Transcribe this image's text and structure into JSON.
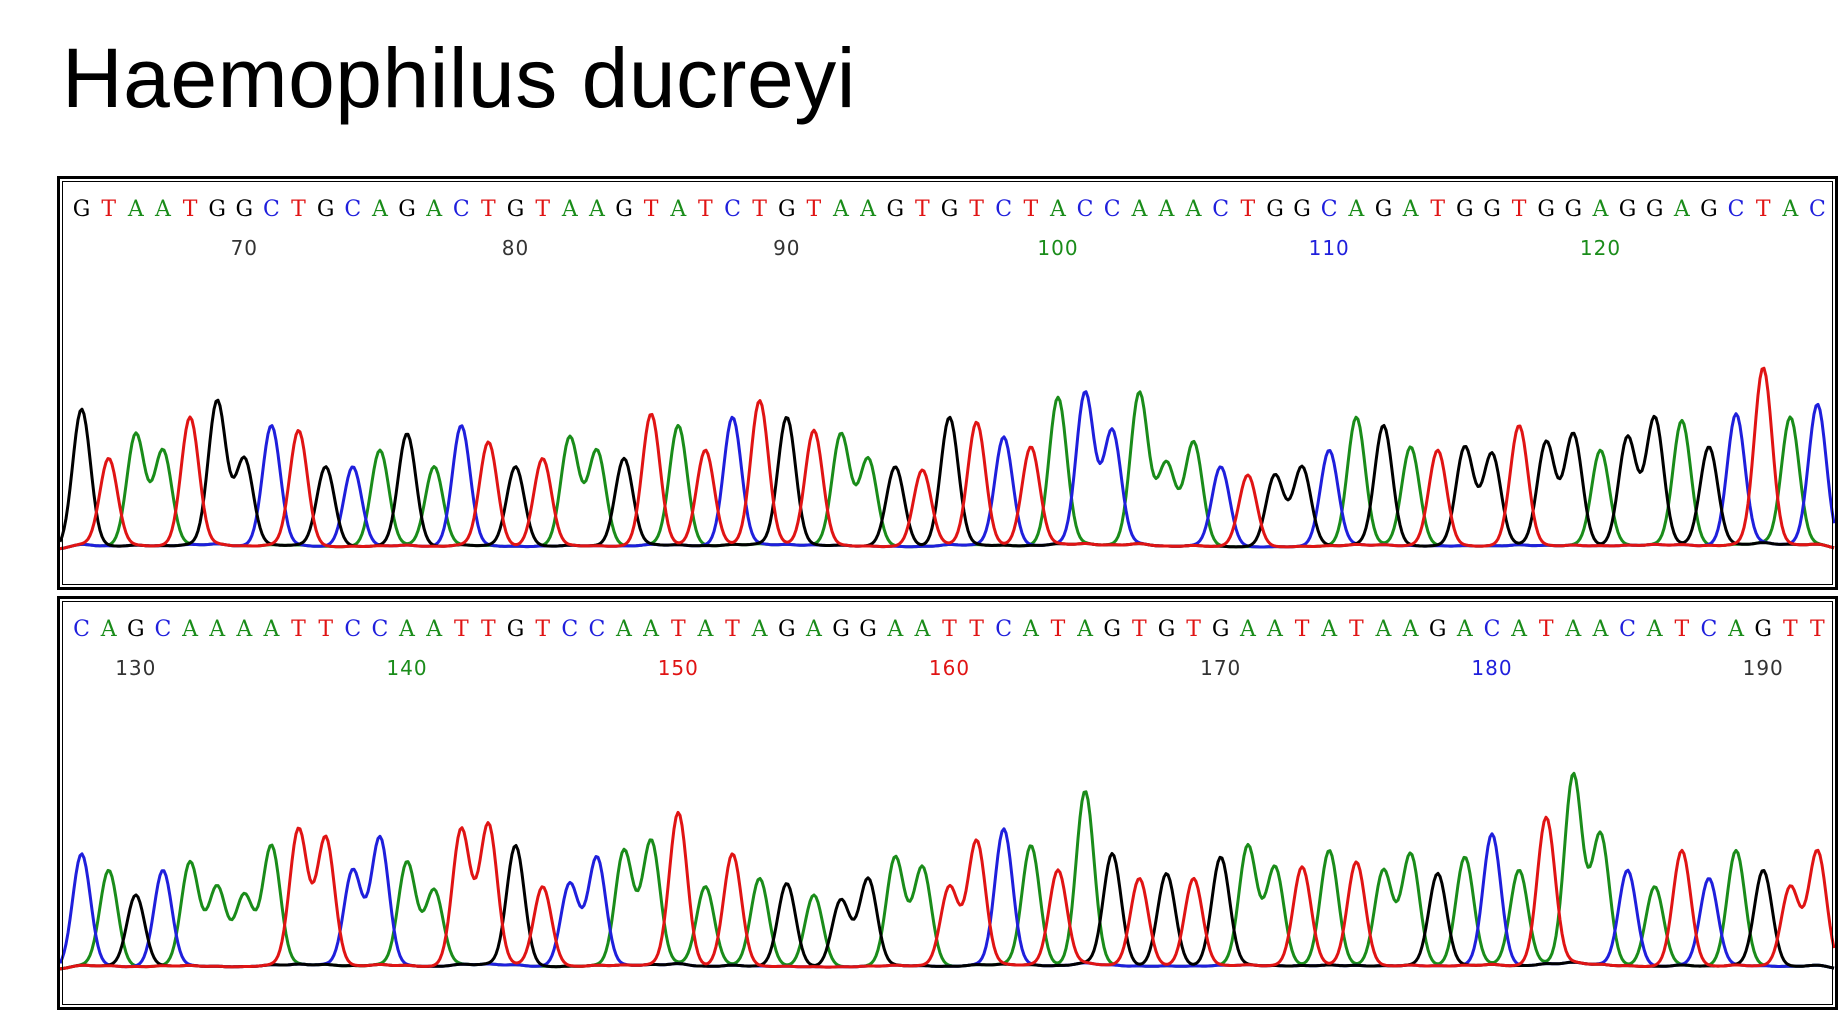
{
  "title": "Haemophilus ducreyi",
  "colors": {
    "A": "#1a8c1a",
    "C": "#1f1fdc",
    "G": "#000000",
    "T": "#e01414"
  },
  "chart_data": [
    {
      "type": "line",
      "description_text": "",
      "sequence": "GTAATGGCTGCAGACTGTAAGTATCTGTAAGTGTCTACCAAACTGGCAGATGGTGGAGGAGCTAC",
      "x_range": [
        64,
        128
      ],
      "position_labels": [
        {
          "value": "70",
          "pos": 70,
          "color": "#333333"
        },
        {
          "value": "80",
          "pos": 80,
          "color": "#333333"
        },
        {
          "value": "90",
          "pos": 90,
          "color": "#333333"
        },
        {
          "value": "100",
          "pos": 100,
          "color": "#1a8c1a"
        },
        {
          "value": "110",
          "pos": 110,
          "color": "#1f1fdc"
        },
        {
          "value": "120",
          "pos": 120,
          "color": "#1a8c1a"
        }
      ],
      "series": [
        {
          "name": "A",
          "color": "#1a8c1a"
        },
        {
          "name": "C",
          "color": "#1f1fdc"
        },
        {
          "name": "G",
          "color": "#000000"
        },
        {
          "name": "T",
          "color": "#e01414"
        }
      ],
      "peak_heights": [
        0.85,
        0.55,
        0.7,
        0.6,
        0.8,
        0.9,
        0.55,
        0.75,
        0.72,
        0.5,
        0.5,
        0.6,
        0.7,
        0.5,
        0.75,
        0.65,
        0.5,
        0.55,
        0.68,
        0.6,
        0.55,
        0.82,
        0.75,
        0.6,
        0.8,
        0.9,
        0.8,
        0.72,
        0.7,
        0.55,
        0.5,
        0.48,
        0.8,
        0.77,
        0.68,
        0.62,
        0.92,
        0.95,
        0.72,
        0.95,
        0.52,
        0.65,
        0.5,
        0.45,
        0.45,
        0.5,
        0.6,
        0.8,
        0.75,
        0.62,
        0.6,
        0.62,
        0.58,
        0.75,
        0.65,
        0.7,
        0.6,
        0.68,
        0.8,
        0.78,
        0.62,
        0.82,
        1.1,
        0.8,
        0.88
      ]
    },
    {
      "type": "line",
      "description_text": "",
      "sequence": "CAGCAAAATTCCAATTGTCCAATATAGAGGAATTCATAGTGTGAATATAAGACATAACATCAGTT",
      "x_range": [
        128,
        192
      ],
      "position_labels": [
        {
          "value": "130",
          "pos": 130,
          "color": "#333333"
        },
        {
          "value": "140",
          "pos": 140,
          "color": "#1a8c1a"
        },
        {
          "value": "150",
          "pos": 150,
          "color": "#e01414"
        },
        {
          "value": "160",
          "pos": 160,
          "color": "#e01414"
        },
        {
          "value": "170",
          "pos": 170,
          "color": "#333333"
        },
        {
          "value": "180",
          "pos": 180,
          "color": "#1f1fdc"
        },
        {
          "value": "190",
          "pos": 190,
          "color": "#333333"
        }
      ],
      "series": [
        {
          "name": "A",
          "color": "#1a8c1a"
        },
        {
          "name": "C",
          "color": "#1f1fdc"
        },
        {
          "name": "G",
          "color": "#000000"
        },
        {
          "name": "T",
          "color": "#e01414"
        }
      ],
      "peak_heights": [
        0.7,
        0.6,
        0.45,
        0.6,
        0.65,
        0.5,
        0.45,
        0.75,
        0.85,
        0.8,
        0.6,
        0.8,
        0.65,
        0.48,
        0.85,
        0.88,
        0.75,
        0.5,
        0.52,
        0.68,
        0.72,
        0.78,
        0.95,
        0.5,
        0.7,
        0.55,
        0.52,
        0.45,
        0.42,
        0.55,
        0.68,
        0.62,
        0.5,
        0.78,
        0.85,
        0.75,
        0.6,
        1.08,
        0.7,
        0.55,
        0.58,
        0.55,
        0.68,
        0.75,
        0.62,
        0.62,
        0.72,
        0.65,
        0.6,
        0.7,
        0.58,
        0.68,
        0.82,
        0.6,
        0.92,
        1.18,
        0.82,
        0.6,
        0.5,
        0.72,
        0.55,
        0.72,
        0.6,
        0.5,
        0.72
      ]
    }
  ]
}
